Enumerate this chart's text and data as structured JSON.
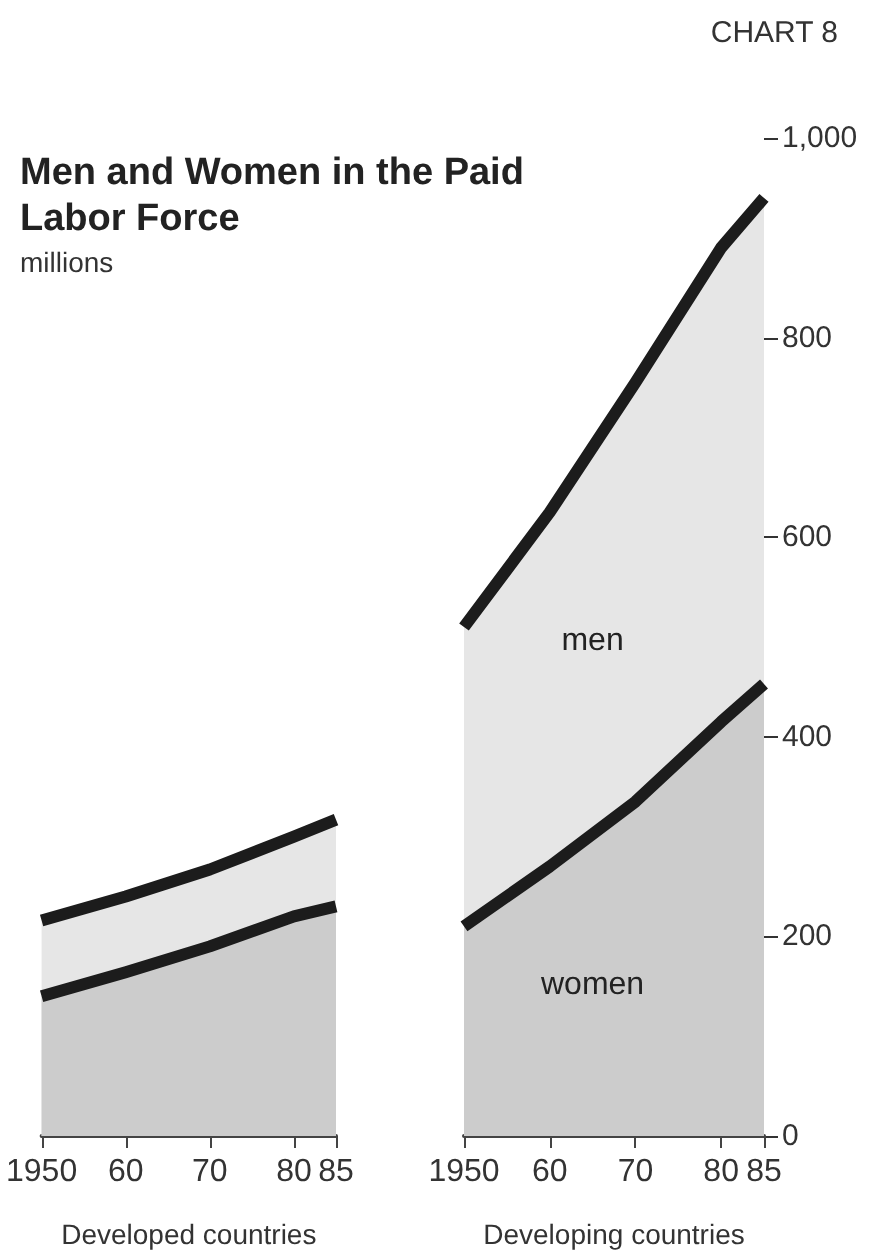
{
  "chart_data": [
    {
      "type": "area",
      "title": "Men and Women in the Paid Labor Force",
      "subtitle": "millions",
      "annotations": [
        "CHART 8"
      ],
      "xlabel": "Developed countries",
      "x": [
        1950,
        1960,
        1970,
        1980,
        1985
      ],
      "series": [
        {
          "color": "#e6e6e6",
          "values": [
            216,
            240,
            267,
            300,
            317
          ]
        },
        {
          "color": "#cccccc",
          "values": [
            140,
            164,
            190,
            220,
            230
          ]
        }
      ],
      "xlim": [
        1950,
        1985
      ],
      "xticks": [
        1950,
        {
          "value": 1960,
          "label": "60"
        },
        {
          "value": 1970,
          "label": "70"
        },
        {
          "value": 1980,
          "label": "80"
        },
        {
          "value": 1985,
          "label": "85"
        }
      ],
      "ylim": [
        0,
        1000
      ],
      "tick_labels": "x"
    },
    {
      "type": "area",
      "xlabel": "Developing countries",
      "x": [
        1950,
        1960,
        1970,
        1980,
        1985
      ],
      "series": [
        {
          "name": "men",
          "color": "#e6e6e6",
          "values": [
            510,
            625,
            755,
            890,
            940
          ]
        },
        {
          "name": "women",
          "color": "#cccccc",
          "values": [
            210,
            270,
            335,
            415,
            453
          ]
        }
      ],
      "xlim": [
        1950,
        1985
      ],
      "xticks": [
        1950,
        {
          "value": 1960,
          "label": "60"
        },
        {
          "value": 1970,
          "label": "70"
        },
        {
          "value": 1980,
          "label": "80"
        },
        {
          "value": 1985,
          "label": "85"
        }
      ],
      "ylim": [
        0,
        1000
      ],
      "yticks": [
        0,
        200,
        400,
        600,
        800,
        {
          "value": 1000,
          "label": "1,000"
        }
      ]
    }
  ]
}
